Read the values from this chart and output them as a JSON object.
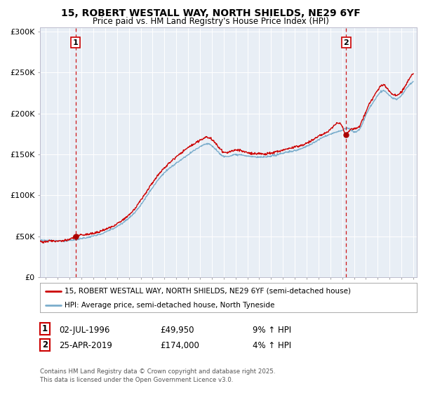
{
  "title_line1": "15, ROBERT WESTALL WAY, NORTH SHIELDS, NE29 6YF",
  "title_line2": "Price paid vs. HM Land Registry's House Price Index (HPI)",
  "yticks": [
    0,
    50000,
    100000,
    150000,
    200000,
    250000,
    300000
  ],
  "ytick_labels": [
    "£0",
    "£50K",
    "£100K",
    "£150K",
    "£200K",
    "£250K",
    "£300K"
  ],
  "sale1_x": 1996.5,
  "sale1_price": 49950,
  "sale2_x": 2019.33,
  "sale2_price": 174000,
  "red_line_color": "#cc0000",
  "blue_line_color": "#7aadcc",
  "legend1": "15, ROBERT WESTALL WAY, NORTH SHIELDS, NE29 6YF (semi-detached house)",
  "legend2": "HPI: Average price, semi-detached house, North Tyneside",
  "table_row1": [
    "1",
    "02-JUL-1996",
    "£49,950",
    "9% ↑ HPI"
  ],
  "table_row2": [
    "2",
    "25-APR-2019",
    "£174,000",
    "4% ↑ HPI"
  ],
  "copyright_text": "Contains HM Land Registry data © Crown copyright and database right 2025.\nThis data is licensed under the Open Government Licence v3.0.",
  "bg_color": "#ffffff",
  "plot_bg_color": "#e8eef5"
}
